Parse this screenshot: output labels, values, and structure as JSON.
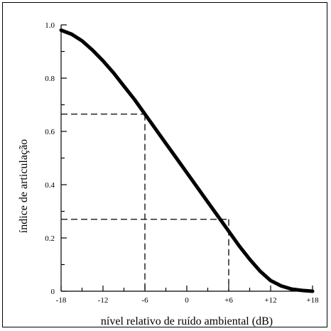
{
  "chart_data": {
    "type": "line",
    "title": "",
    "xlabel": "nível relativo de ruído ambiental (dB)",
    "ylabel": "índice de articulação",
    "xlim": [
      -18,
      18
    ],
    "ylim": [
      0,
      1.0
    ],
    "x_ticks": [
      -18,
      -12,
      -6,
      0,
      6,
      12,
      18
    ],
    "x_tick_labels": [
      "-18",
      "-12",
      "-6",
      "0",
      "+6",
      "+12",
      "+18"
    ],
    "y_ticks": [
      0,
      0.2,
      0.4,
      0.6,
      0.8,
      1.0
    ],
    "y_tick_labels": [
      "0",
      "0.2",
      "0.4",
      "0.6",
      "0.8",
      "1.0"
    ],
    "grid": false,
    "series": [
      {
        "x": [
          -18,
          -16.5,
          -15,
          -13.5,
          -12,
          -10.5,
          -9,
          -7.5,
          -6,
          -4.5,
          -3,
          -1.5,
          0,
          1.5,
          3,
          4.5,
          6,
          7.5,
          9,
          10.5,
          12,
          13.5,
          15,
          16.5,
          18
        ],
        "y": [
          0.98,
          0.965,
          0.94,
          0.905,
          0.865,
          0.82,
          0.77,
          0.72,
          0.665,
          0.61,
          0.555,
          0.5,
          0.445,
          0.39,
          0.335,
          0.28,
          0.225,
          0.17,
          0.12,
          0.075,
          0.04,
          0.02,
          0.008,
          0.003,
          0.0
        ]
      }
    ],
    "reference_lines": [
      {
        "x": -6,
        "y": 0.665
      },
      {
        "x": 6,
        "y": 0.27
      }
    ]
  }
}
